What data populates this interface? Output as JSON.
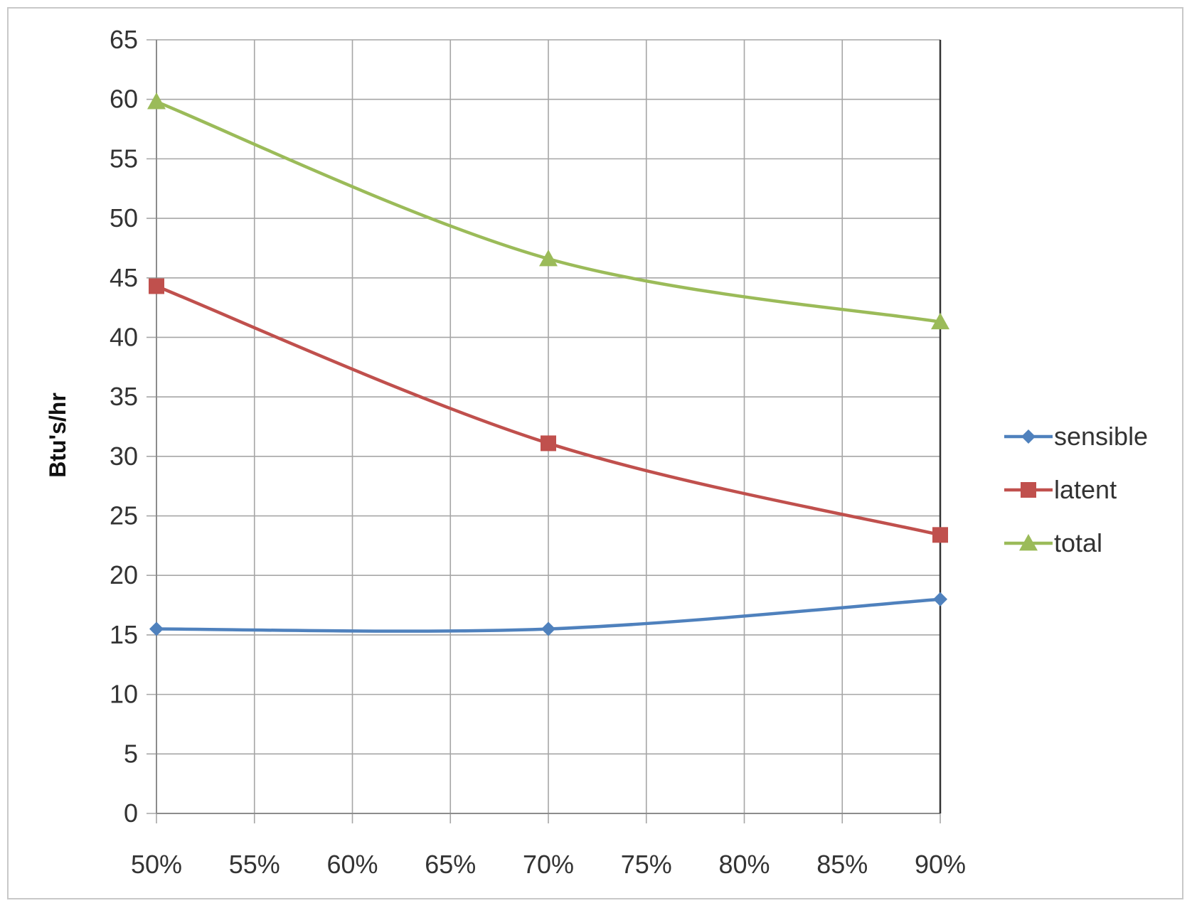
{
  "chart_data": {
    "type": "line",
    "title": "",
    "xlabel": "",
    "ylabel": "Btu's/hr",
    "x_ticks": [
      "50%",
      "55%",
      "60%",
      "65%",
      "70%",
      "75%",
      "80%",
      "85%",
      "90%"
    ],
    "y_ticks": [
      "0",
      "5",
      "10",
      "15",
      "20",
      "25",
      "30",
      "35",
      "40",
      "45",
      "50",
      "55",
      "60",
      "65"
    ],
    "x": [
      50,
      70,
      90
    ],
    "xlim": [
      50,
      90
    ],
    "ylim": [
      0,
      65
    ],
    "grid": true,
    "legend_position": "right",
    "series": [
      {
        "name": "sensible",
        "values": [
          15.5,
          15.5,
          18
        ],
        "color": "#4f81bd",
        "marker": "diamond"
      },
      {
        "name": "latent",
        "values": [
          44.3,
          31.1,
          23.4
        ],
        "color": "#c0504d",
        "marker": "square"
      },
      {
        "name": "total",
        "values": [
          59.8,
          46.6,
          41.3
        ],
        "color": "#9bbb59",
        "marker": "triangle"
      }
    ]
  }
}
